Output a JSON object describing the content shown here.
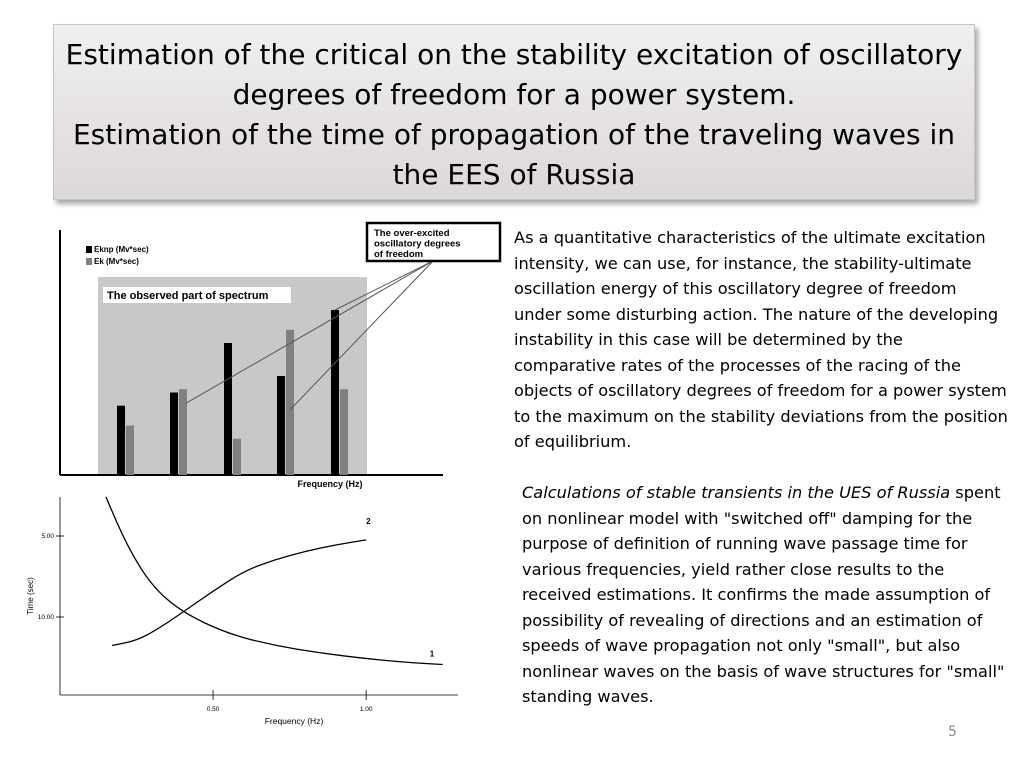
{
  "slide": {
    "title_line1": "Estimation of the critical on the stability excitation of oscillatory",
    "title_line2": "degrees of freedom for a power system.",
    "title_line3": "Estimation of the time of propagation of the traveling waves in",
    "title_line4": "the EES of Russia",
    "paragraph1": "As a quantitative characteristics of the ultimate excitation intensity, we can use, for instance, the stability-ultimate oscillation energy of this oscillatory degree of freedom under some disturbing action. The nature of the developing instability in this case will be determined by the comparative rates of the processes of the racing of the objects of oscillatory degrees of freedom for a power system to the maximum on the stability deviations from the position of equilibrium.",
    "paragraph2_italic": "Calculations of stable transients in the UES of Russia",
    "paragraph2_rest": " spent on nonlinear model with \"switched off\" damping for the purpose of definition of running wave passage time for various frequencies, yield rather close results to the received estimations. It confirms the made assumption of possibility of revealing of directions and an estimation of speeds of wave propagation not only \"small\", but also nonlinear waves on the basis of wave structures for \"small\" standing waves.",
    "page_number": "5"
  },
  "chart_data": [
    {
      "type": "bar",
      "title": "",
      "xlabel": "Frequency (Hz)",
      "ylabel": "",
      "ylim": [
        0,
        100
      ],
      "categories": [
        "",
        "",
        "",
        "",
        ""
      ],
      "series": [
        {
          "name": "Eknp (Mv*sec)",
          "color": "#000000",
          "values": [
            42,
            50,
            80,
            60,
            100
          ]
        },
        {
          "name": "Ek (Mv*sec)",
          "color": "#808080",
          "values": [
            30,
            52,
            22,
            88,
            52
          ]
        }
      ],
      "annotations": {
        "shaded_region": "The observed part of spectrum",
        "callout": "The over-excited oscillatory degrees of freedom"
      },
      "legend_position": "top-left"
    },
    {
      "type": "line",
      "title": "",
      "xlabel": "Frequency (Hz)",
      "ylabel": "Time (sec)",
      "xticks": [
        "0.50",
        "1.00"
      ],
      "yticks": [
        "5.00",
        "10.00"
      ],
      "xlim": [
        0,
        1.3
      ],
      "ylim": [
        0,
        12
      ],
      "series": [
        {
          "name": "1",
          "x": [
            0.15,
            0.22,
            0.3,
            0.4,
            0.55,
            0.7,
            0.85,
            1.0,
            1.15,
            1.25
          ],
          "y": [
            12.0,
            9.0,
            6.6,
            5.0,
            3.7,
            3.0,
            2.55,
            2.2,
            1.95,
            1.85
          ]
        },
        {
          "name": "2",
          "x": [
            0.17,
            0.25,
            0.32,
            0.4,
            0.5,
            0.6,
            0.7,
            0.8,
            0.9,
            1.0
          ],
          "y": [
            3.0,
            3.3,
            4.0,
            5.0,
            6.3,
            7.5,
            8.2,
            8.7,
            9.1,
            9.4
          ]
        }
      ]
    }
  ]
}
